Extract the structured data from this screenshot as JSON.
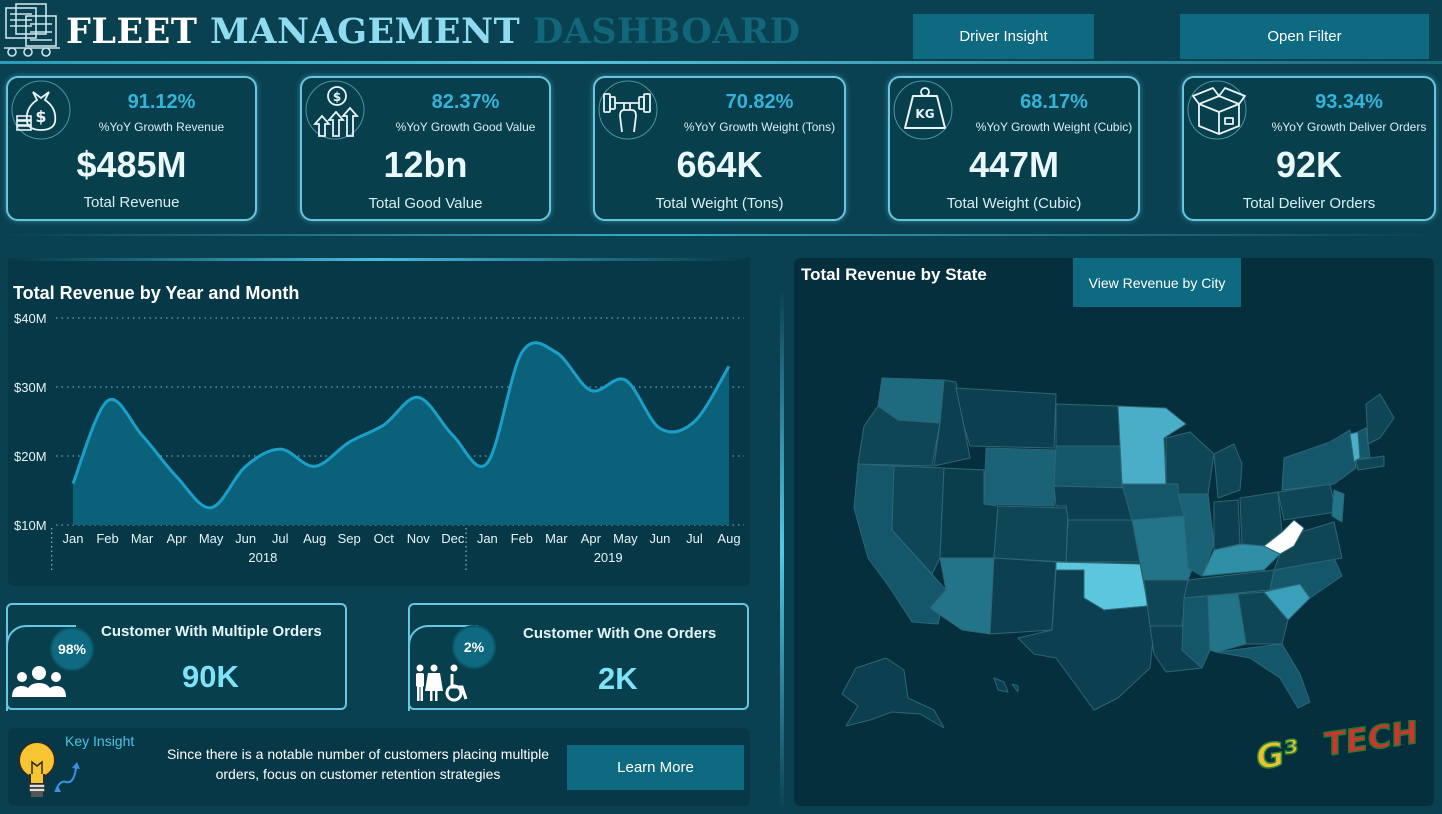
{
  "header": {
    "title_part1": "FLEET",
    "title_part2": "MANAGEMENT",
    "title_part3": "DASHBOARD",
    "btn_driver": "Driver Insight",
    "btn_filter": "Open Filter"
  },
  "kpis": [
    {
      "icon": "money-bag-icon",
      "pct": "91.12%",
      "sub": "%YoY Growth Revenue",
      "value": "$485M",
      "label": "Total Revenue"
    },
    {
      "icon": "growth-coin-icon",
      "pct": "82.37%",
      "sub": "%YoY Growth Good Value",
      "value": "12bn",
      "label": "Total Good Value"
    },
    {
      "icon": "dumbbell-icon",
      "pct": "70.82%",
      "sub": "%YoY Growth Weight (Tons)",
      "value": "664K",
      "label": "Total Weight (Tons)"
    },
    {
      "icon": "kg-weight-icon",
      "pct": "68.17%",
      "sub": "%YoY Growth Weight (Cubic)",
      "value": "447M",
      "label": "Total Weight (Cubic)"
    },
    {
      "icon": "package-icon",
      "pct": "93.34%",
      "sub": "%YoY Growth Deliver Orders",
      "value": "92K",
      "label": "Total Deliver Orders"
    }
  ],
  "chart_data": {
    "type": "area",
    "title": "Total Revenue by Year and Month",
    "categories": [
      "Jan",
      "Feb",
      "Mar",
      "Apr",
      "May",
      "Jun",
      "Jul",
      "Aug",
      "Sep",
      "Oct",
      "Nov",
      "Dec",
      "Jan",
      "Feb",
      "Mar",
      "Apr",
      "May",
      "Jun",
      "Jul",
      "Aug"
    ],
    "years": [
      {
        "label": "2018",
        "months": 12
      },
      {
        "label": "2019",
        "months": 8
      }
    ],
    "values": [
      16,
      28,
      23,
      17,
      12.5,
      18.5,
      21,
      18.5,
      22,
      24.5,
      28.5,
      23,
      19,
      35,
      35,
      29.5,
      31,
      24,
      25,
      33
    ],
    "yticks": [
      "$10M",
      "$20M",
      "$30M",
      "$40M"
    ],
    "ylim": [
      10,
      40
    ],
    "unit": "M"
  },
  "map": {
    "title": "Total Revenue by State",
    "btn_city": "View Revenue by City"
  },
  "customers": {
    "multi": {
      "title": "Customer With Multiple Orders",
      "value": "90K",
      "pct": "98%"
    },
    "one": {
      "title": "Customer With One Orders",
      "value": "2K",
      "pct": "2%"
    }
  },
  "insight": {
    "title": "Key Insight",
    "text": "Since there is a notable number of customers placing multiple orders, focus on customer retention strategies",
    "btn": "Learn More"
  },
  "brand": {
    "text": "G³ TECH"
  },
  "colors": {
    "accent": "#36b3d9",
    "button": "#0d6a80",
    "bg": "#0a4150"
  }
}
